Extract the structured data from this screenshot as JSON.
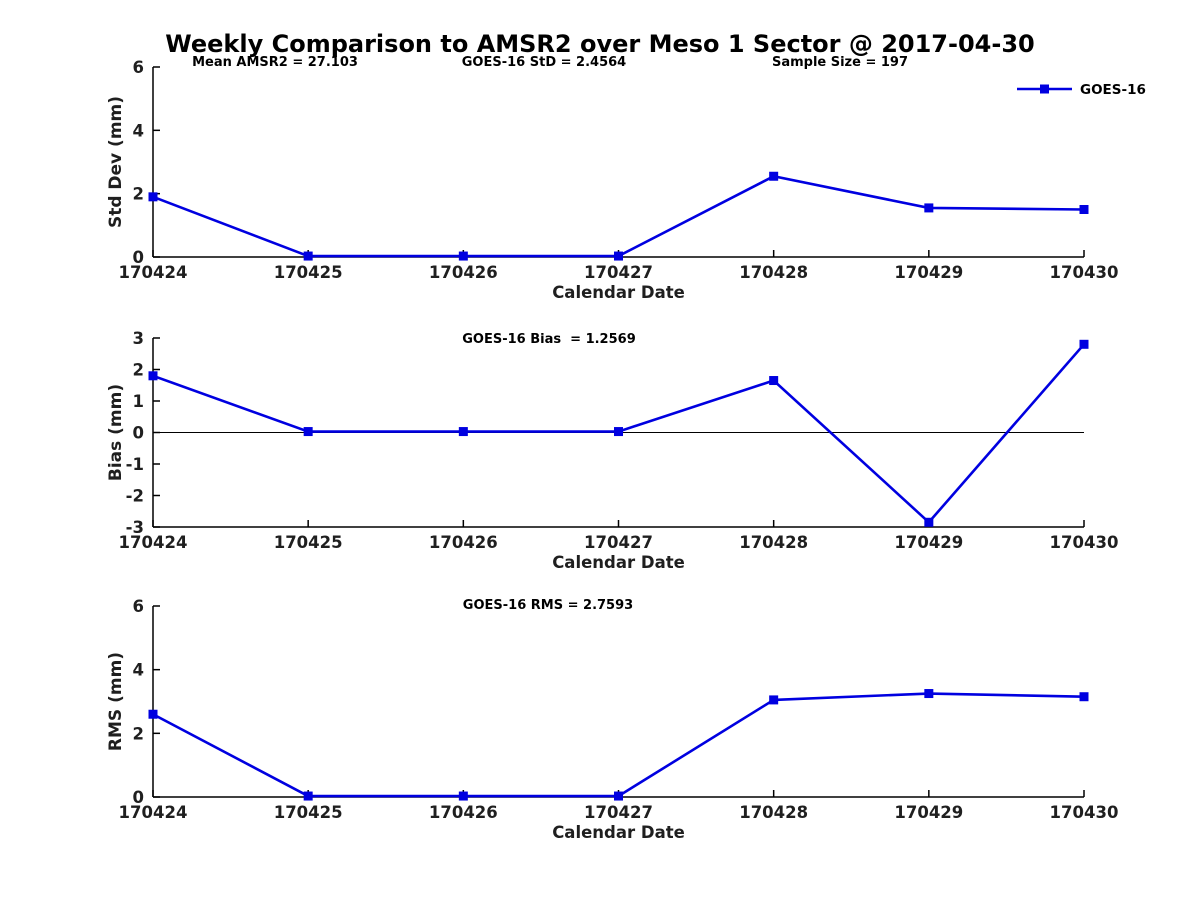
{
  "title": "Weekly Comparison to AMSR2 over Meso 1 Sector @ 2017-04-30",
  "legend": {
    "label": "GOES-16",
    "position": "top-right"
  },
  "colors": {
    "line": "#0000e0",
    "marker": "#0000e0",
    "axis": "#000000",
    "tick_label": "#1f1f1f",
    "text": "#000000",
    "background": "#ffffff"
  },
  "chart_data": [
    {
      "type": "line",
      "categories": [
        "170424",
        "170425",
        "170426",
        "170427",
        "170428",
        "170429",
        "170430"
      ],
      "series": [
        {
          "name": "GOES-16",
          "values": [
            1.9,
            0.03,
            0.03,
            0.03,
            2.55,
            1.55,
            1.5
          ]
        }
      ],
      "xlabel": "Calendar Date",
      "ylabel": "Std Dev (mm)",
      "ylim": [
        0,
        6
      ],
      "yticks": [
        0,
        2,
        4,
        6
      ],
      "grid": false,
      "zero_line": false,
      "show_legend": true,
      "legend_position": "top-right",
      "annotations": [
        "Mean AMSR2 = 27.103",
        "GOES-16 StD = 2.4564",
        "Sample Size = 197"
      ]
    },
    {
      "type": "line",
      "categories": [
        "170424",
        "170425",
        "170426",
        "170427",
        "170428",
        "170429",
        "170430"
      ],
      "series": [
        {
          "name": "GOES-16",
          "values": [
            1.8,
            0.03,
            0.03,
            0.03,
            1.65,
            -2.85,
            2.8
          ]
        }
      ],
      "xlabel": "Calendar Date",
      "ylabel": "Bias (mm)",
      "ylim": [
        -3,
        3
      ],
      "yticks": [
        -3,
        -2,
        -1,
        0,
        1,
        2,
        3
      ],
      "grid": false,
      "zero_line": true,
      "show_legend": false,
      "annotations": [
        "GOES-16 Bias  = 1.2569"
      ]
    },
    {
      "type": "line",
      "categories": [
        "170424",
        "170425",
        "170426",
        "170427",
        "170428",
        "170429",
        "170430"
      ],
      "series": [
        {
          "name": "GOES-16",
          "values": [
            2.6,
            0.03,
            0.03,
            0.03,
            3.05,
            3.25,
            3.15
          ]
        }
      ],
      "xlabel": "Calendar Date",
      "ylabel": "RMS (mm)",
      "ylim": [
        0,
        6
      ],
      "yticks": [
        0,
        2,
        4,
        6
      ],
      "grid": false,
      "zero_line": false,
      "show_legend": false,
      "annotations": [
        "GOES-16 RMS = 2.7593"
      ]
    }
  ]
}
